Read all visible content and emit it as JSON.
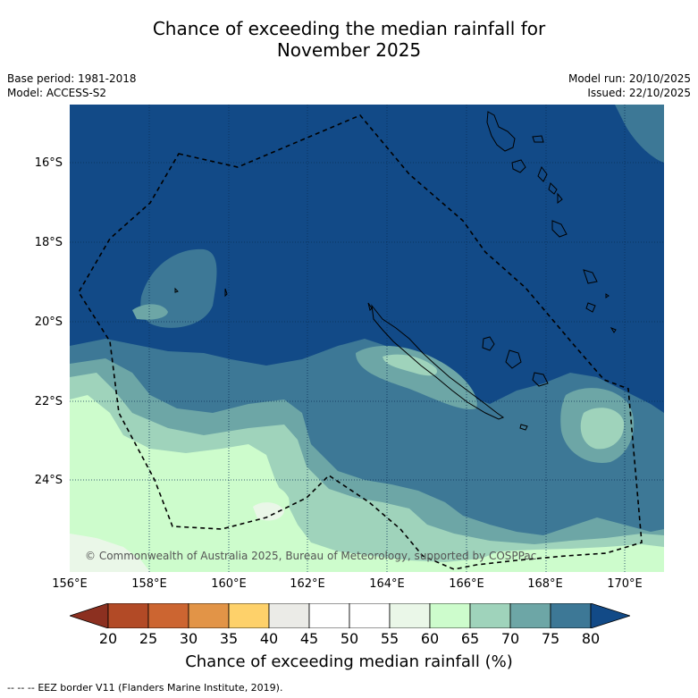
{
  "title": {
    "line1": "Chance of exceeding the median rainfall for",
    "line2": "November 2025"
  },
  "meta_left": {
    "base_period": "Base period: 1981-2018",
    "model": "Model: ACCESS-S2"
  },
  "meta_right": {
    "model_run": "Model run: 20/10/2025",
    "issued": "Issued: 22/10/2025"
  },
  "map": {
    "lat_labels": [
      "16°S",
      "18°S",
      "20°S",
      "22°S",
      "24°S"
    ],
    "lon_labels": [
      "156°E",
      "158°E",
      "160°E",
      "162°E",
      "164°E",
      "166°E",
      "168°E",
      "170°E"
    ],
    "copyright": "© Commonwealth of Australia 2025, Bureau of Meteorology, supported by COSPPac",
    "ocean_color": "#124a87"
  },
  "colorbar": {
    "ticks": [
      "20",
      "25",
      "30",
      "35",
      "40",
      "45",
      "50",
      "55",
      "60",
      "65",
      "70",
      "75",
      "80"
    ],
    "colors": [
      "#8c3020",
      "#b24a26",
      "#cc6531",
      "#e29447",
      "#fed16a",
      "#ebebe7",
      "#ffffff",
      "#ffffff",
      "#eaf7e8",
      "#cdfccc",
      "#9fd3bb",
      "#6da6a6",
      "#3d7896",
      "#124a87"
    ],
    "title": "Chance of exceeding median rainfall (%)"
  },
  "legend_note": {
    "dashes": "-- -- --",
    "text": "EEZ border V11 (Flanders Marine Institute, 2019)."
  }
}
